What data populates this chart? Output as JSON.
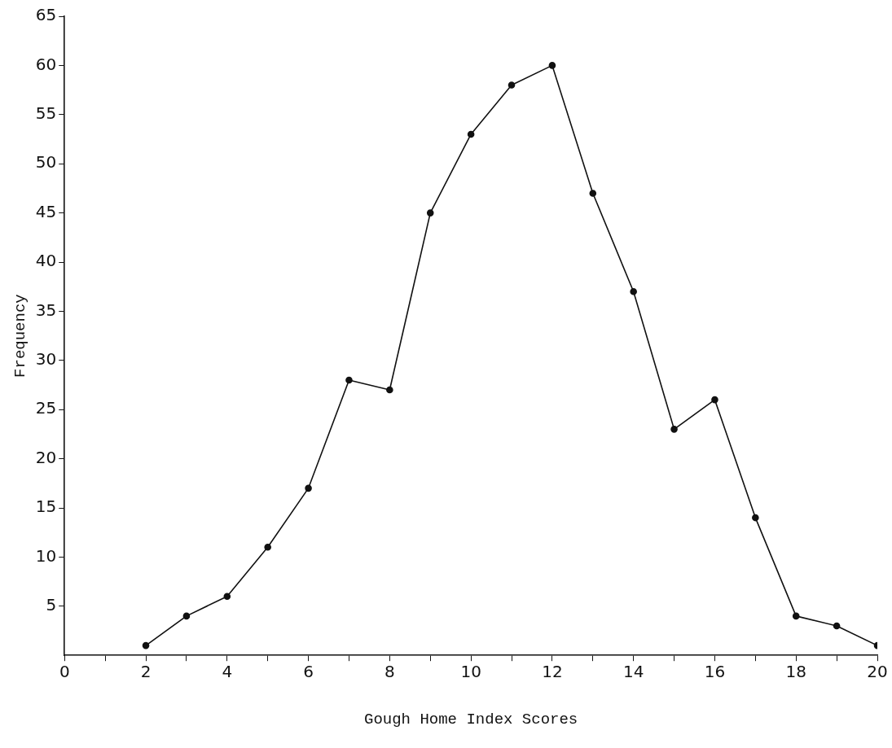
{
  "chart_data": {
    "type": "line",
    "xlabel": "Gough Home Index Scores",
    "ylabel": "Frequency",
    "x": [
      2,
      3,
      4,
      5,
      6,
      7,
      8,
      9,
      10,
      11,
      12,
      13,
      14,
      15,
      16,
      17,
      18,
      19,
      20
    ],
    "series": [
      {
        "color": "#111111",
        "values": [
          1,
          4,
          6,
          11,
          17,
          28,
          27,
          45,
          53,
          58,
          60,
          47,
          37,
          23,
          26,
          14,
          4,
          3,
          1
        ]
      }
    ],
    "xlim": [
      0,
      20
    ],
    "xticks": [
      0,
      {
        "value": 1,
        "label": null
      },
      2,
      {
        "value": 3,
        "label": null
      },
      4,
      {
        "value": 5,
        "label": null
      },
      6,
      {
        "value": 7,
        "label": null
      },
      8,
      {
        "value": 9,
        "label": null
      },
      10,
      {
        "value": 11,
        "label": null
      },
      12,
      {
        "value": 13,
        "label": null
      },
      14,
      {
        "value": 15,
        "label": null
      },
      16,
      {
        "value": 17,
        "label": null
      },
      18,
      {
        "value": 19,
        "label": null
      },
      20
    ],
    "ylim": [
      0,
      65
    ],
    "yticks": [
      5,
      10,
      15,
      20,
      25,
      30,
      35,
      40,
      45,
      50,
      55,
      60,
      65
    ],
    "grid": false,
    "legend": false,
    "marker": "circle",
    "line_style": "solid"
  }
}
